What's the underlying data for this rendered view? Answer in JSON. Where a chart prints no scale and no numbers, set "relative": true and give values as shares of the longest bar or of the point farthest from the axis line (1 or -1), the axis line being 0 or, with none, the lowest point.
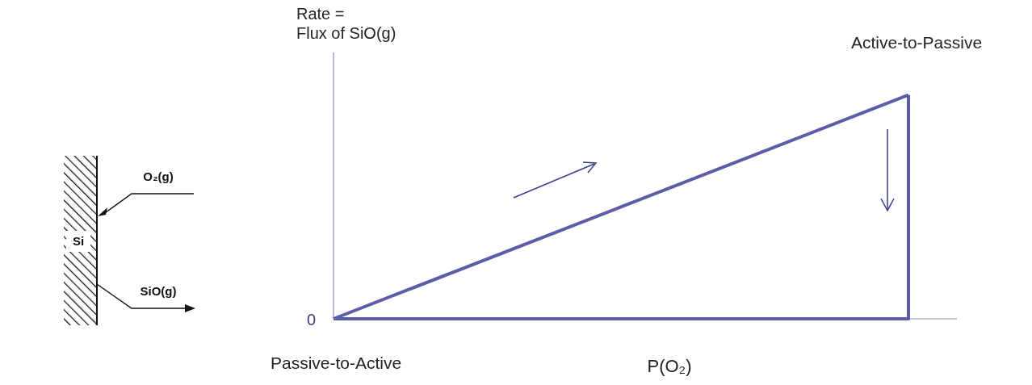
{
  "chart_data": {
    "type": "line",
    "relative": true,
    "ylabel": "Rate =\nFlux of SiO(g)",
    "xlabel": "P(O₂)",
    "categories": [
      null,
      null
    ],
    "series": [
      {
        "color": "#5b5ea6",
        "values": [
          0,
          1
        ]
      }
    ],
    "annotations": [
      "0",
      "Passive-to-Active",
      "Active-to-Passive",
      "O₂(g)",
      "Si",
      "SiO(g)"
    ],
    "line_style": "solid"
  }
}
